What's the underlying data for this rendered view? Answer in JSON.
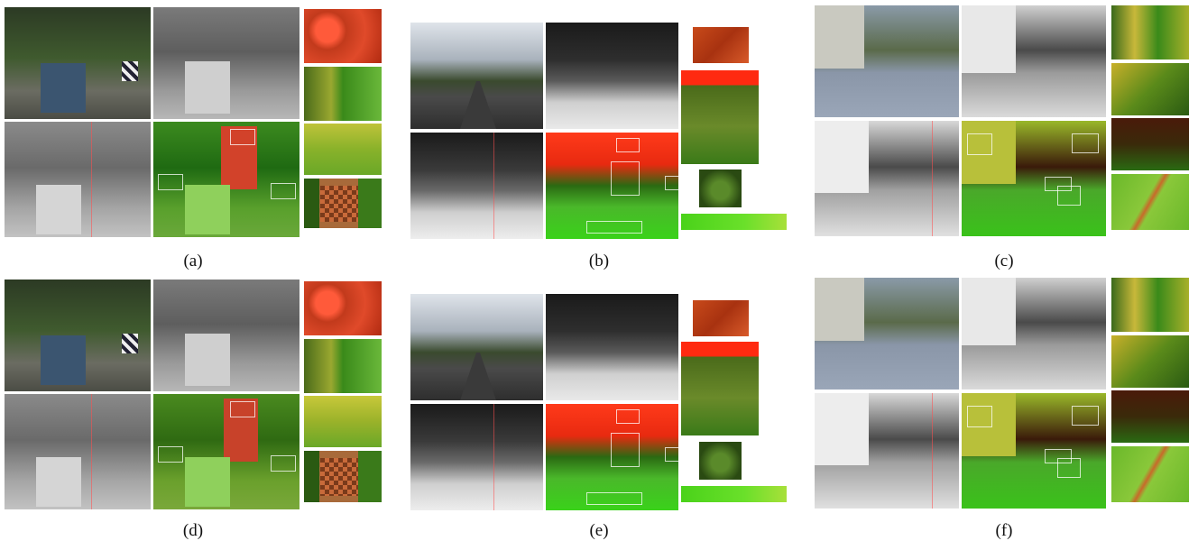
{
  "figure": {
    "panels": [
      {
        "id": "a",
        "caption": "(a)"
      },
      {
        "id": "b",
        "caption": "(b)"
      },
      {
        "id": "c",
        "caption": "(c)"
      },
      {
        "id": "d",
        "caption": "(d)"
      },
      {
        "id": "e",
        "caption": "(e)"
      },
      {
        "id": "f",
        "caption": "(f)"
      }
    ]
  }
}
